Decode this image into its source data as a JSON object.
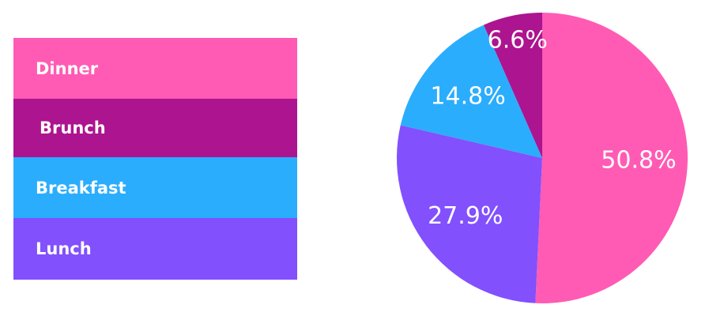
{
  "chart_data": {
    "type": "pie",
    "title": "",
    "legend": {
      "placement": "left",
      "entries": [
        {
          "name": "Dinner",
          "color": "#FF5BB4"
        },
        {
          "name": "Brunch",
          "color": "#AD148F"
        },
        {
          "name": "Breakfast",
          "color": "#2BADFD"
        },
        {
          "name": "Lunch",
          "color": "#8250FD"
        }
      ]
    },
    "slices": [
      {
        "name": "Dinner",
        "value": 50.8,
        "label": "50.8%",
        "color": "#FF5BB4"
      },
      {
        "name": "Lunch",
        "value": 27.9,
        "label": "27.9%",
        "color": "#8250FD"
      },
      {
        "name": "Breakfast",
        "value": 14.8,
        "label": "14.8%",
        "color": "#2BADFD"
      },
      {
        "name": "Brunch",
        "value": 6.6,
        "label": "6.6%",
        "color": "#AD148F"
      }
    ]
  }
}
